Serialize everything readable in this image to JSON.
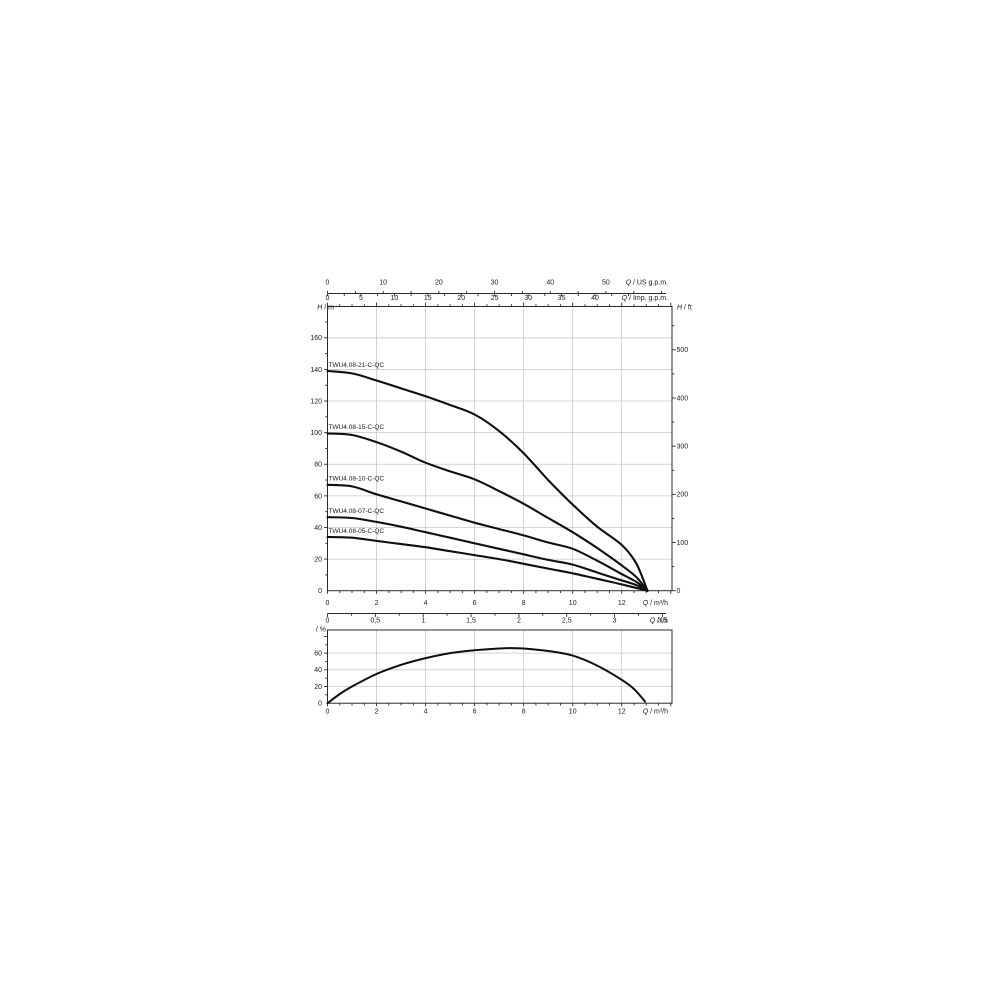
{
  "colors": {
    "background": "#ffffff",
    "grid": "#c8c8c8",
    "frame": "#2b2b2b",
    "curve": "#0f0f0f",
    "text": "#1a1a1a"
  },
  "chart_data": [
    {
      "type": "line",
      "panel": "head-flow",
      "x": {
        "label_sym": "Q",
        "label_rest": "/ m³/h",
        "unit": "m³/h",
        "range": [
          0,
          14.05
        ],
        "grid_step": 2,
        "ticks": [
          "0",
          "2",
          "4",
          "6",
          "8",
          "10",
          "12"
        ]
      },
      "x_secondary": [
        {
          "label_sym": "Q",
          "label_rest": "/ US g.p.m.",
          "unit": "US g.p.m.",
          "ticks": [
            "0",
            "10",
            "20",
            "30",
            "40",
            "50"
          ]
        },
        {
          "label_sym": "Q",
          "label_rest": "/ Imp. g.p.m.",
          "unit": "Imp. g.p.m.",
          "ticks": [
            "0",
            "5",
            "10",
            "15",
            "20",
            "25",
            "30",
            "35",
            "40"
          ]
        },
        {
          "label_sym": "Q",
          "label_rest": "/ l/s",
          "unit": "l/s",
          "ticks": [
            "0",
            "0,5",
            "1",
            "1,5",
            "2",
            "2,5",
            "3",
            "3,5"
          ]
        }
      ],
      "y_left": {
        "label_sym": "H",
        "label_rest": "/ m",
        "unit": "m",
        "range": [
          0,
          180
        ],
        "grid_step": 20,
        "ticks": [
          "160",
          "140",
          "120",
          "100",
          "80",
          "60",
          "40",
          "20",
          "0"
        ]
      },
      "y_right": {
        "label_sym": "H",
        "label_rest": "/ ft",
        "unit": "ft",
        "range": [
          0,
          590
        ],
        "ticks": [
          "500",
          "400",
          "300",
          "200",
          "100",
          "0"
        ]
      },
      "legend_position": "labels-on-curves",
      "grid": true,
      "series": [
        {
          "name": "TWU4.08-21-C-QC",
          "points": [
            [
              0,
              139
            ],
            [
              1,
              137.5
            ],
            [
              2,
              133
            ],
            [
              3,
              128
            ],
            [
              4,
              123
            ],
            [
              5,
              117.5
            ],
            [
              6,
              111.5
            ],
            [
              7,
              101
            ],
            [
              8,
              87
            ],
            [
              9,
              70
            ],
            [
              10,
              54.5
            ],
            [
              11,
              40.5
            ],
            [
              12,
              29
            ],
            [
              12.6,
              17
            ],
            [
              13.05,
              0
            ]
          ]
        },
        {
          "name": "TWU4.08-15-C-QC",
          "points": [
            [
              0,
              99.5
            ],
            [
              1,
              98.5
            ],
            [
              2,
              94
            ],
            [
              3,
              88
            ],
            [
              4,
              81
            ],
            [
              5,
              75.5
            ],
            [
              6,
              70.5
            ],
            [
              7,
              63
            ],
            [
              8,
              55
            ],
            [
              9,
              46
            ],
            [
              10,
              37
            ],
            [
              11,
              27
            ],
            [
              12,
              16
            ],
            [
              12.6,
              8.5
            ],
            [
              13.05,
              0
            ]
          ]
        },
        {
          "name": "TWU4.08-10-C-QC",
          "points": [
            [
              0,
              67
            ],
            [
              1,
              66
            ],
            [
              2,
              61
            ],
            [
              3,
              56.5
            ],
            [
              4,
              52
            ],
            [
              5,
              47.5
            ],
            [
              6,
              43
            ],
            [
              7,
              39
            ],
            [
              8,
              35
            ],
            [
              9,
              30.5
            ],
            [
              10,
              26.5
            ],
            [
              11,
              19
            ],
            [
              12,
              10.5
            ],
            [
              12.6,
              5.5
            ],
            [
              13.05,
              0
            ]
          ]
        },
        {
          "name": "TWU4.08-07-C-QC",
          "points": [
            [
              0,
              46.5
            ],
            [
              1,
              46
            ],
            [
              2,
              43.5
            ],
            [
              3,
              40.5
            ],
            [
              4,
              37
            ],
            [
              5,
              33.5
            ],
            [
              6,
              30
            ],
            [
              7,
              26.5
            ],
            [
              8,
              23
            ],
            [
              9,
              19.5
            ],
            [
              10,
              16.5
            ],
            [
              11,
              11.5
            ],
            [
              12,
              6.5
            ],
            [
              12.6,
              3.5
            ],
            [
              13.05,
              0
            ]
          ]
        },
        {
          "name": "TWU4.08-05-C-QC",
          "points": [
            [
              0,
              34
            ],
            [
              1,
              33.5
            ],
            [
              2,
              31.5
            ],
            [
              3,
              29.5
            ],
            [
              4,
              27.5
            ],
            [
              5,
              25
            ],
            [
              6,
              22.5
            ],
            [
              7,
              20
            ],
            [
              8,
              17
            ],
            [
              9,
              14
            ],
            [
              10,
              11
            ],
            [
              11,
              7.5
            ],
            [
              12,
              4
            ],
            [
              13.05,
              0
            ]
          ]
        }
      ]
    },
    {
      "type": "line",
      "panel": "efficiency",
      "x": {
        "label_sym": "Q",
        "label_rest": "/ m³/h",
        "unit": "m³/h",
        "range": [
          0,
          14.05
        ],
        "grid_step": 2,
        "ticks": [
          "0",
          "2",
          "4",
          "6",
          "8",
          "10",
          "12"
        ]
      },
      "y_left": {
        "label_sym": "",
        "label_rest": "/ %",
        "unit": "%",
        "range": [
          0,
          88
        ],
        "grid_step": 20,
        "ticks": [
          "60",
          "40",
          "20",
          "0"
        ]
      },
      "grid": true,
      "series": [
        {
          "name": "efficiency-curve",
          "points": [
            [
              0,
              0
            ],
            [
              0.5,
              11
            ],
            [
              1,
              20
            ],
            [
              2,
              35
            ],
            [
              3,
              46
            ],
            [
              4,
              54
            ],
            [
              5,
              60
            ],
            [
              6,
              63.5
            ],
            [
              7,
              65.5
            ],
            [
              7.5,
              66
            ],
            [
              8,
              65.5
            ],
            [
              9,
              62.5
            ],
            [
              10,
              57
            ],
            [
              11,
              45
            ],
            [
              12,
              28
            ],
            [
              12.5,
              17
            ],
            [
              12.95,
              2
            ]
          ]
        }
      ]
    }
  ]
}
